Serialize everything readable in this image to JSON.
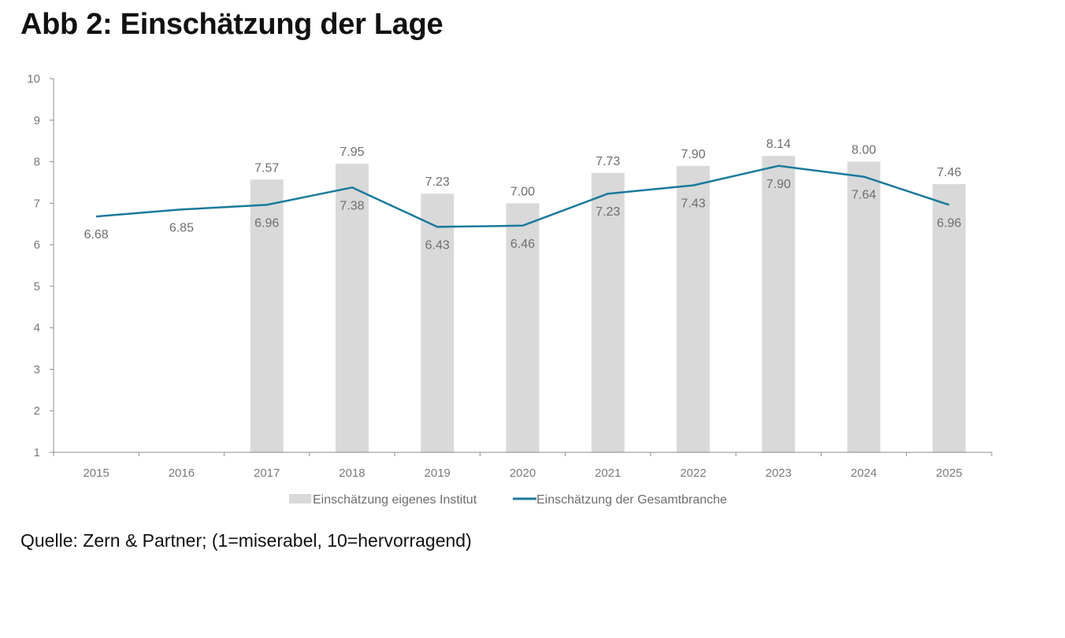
{
  "title": "Abb 2: Einschätzung der Lage",
  "source": "Quelle: Zern & Partner; (1=miserabel, 10=hervorragend)",
  "colors": {
    "bar": "#d9d9d9",
    "line": "#1a7a9c",
    "axis": "#8c8c8c",
    "label": "#6e6e6e"
  },
  "chart_data": {
    "type": "bar",
    "title": "Abb 2: Einschätzung der Lage",
    "categories": [
      "2015",
      "2016",
      "2017",
      "2018",
      "2019",
      "2020",
      "2021",
      "2022",
      "2023",
      "2024",
      "2025"
    ],
    "ylim": [
      1,
      10
    ],
    "yticks": [
      "1",
      "2",
      "3",
      "4",
      "5",
      "6",
      "7",
      "8",
      "9",
      "10"
    ],
    "grid": false,
    "legend_position": "bottom",
    "series": [
      {
        "name": "Einschätzung eigenes Institut",
        "type": "bar",
        "values": [
          null,
          null,
          7.57,
          7.95,
          7.23,
          7.0,
          7.73,
          7.9,
          8.14,
          8.0,
          7.46
        ],
        "labels": [
          "",
          "",
          "7.57",
          "7.95",
          "7.23",
          "7.00",
          "7.73",
          "7.90",
          "8.14",
          "8.00",
          "7.46"
        ]
      },
      {
        "name": "Einschätzung der Gesamtbranche",
        "type": "line",
        "values": [
          6.68,
          6.85,
          6.96,
          7.38,
          6.43,
          6.46,
          7.23,
          7.43,
          7.9,
          7.64,
          6.96
        ],
        "labels": [
          "6.68",
          "6.85",
          "6.96",
          "7.38",
          "6.43",
          "6.46",
          "7.23",
          "7.43",
          "7.90",
          "7.64",
          "6.96"
        ]
      }
    ]
  }
}
